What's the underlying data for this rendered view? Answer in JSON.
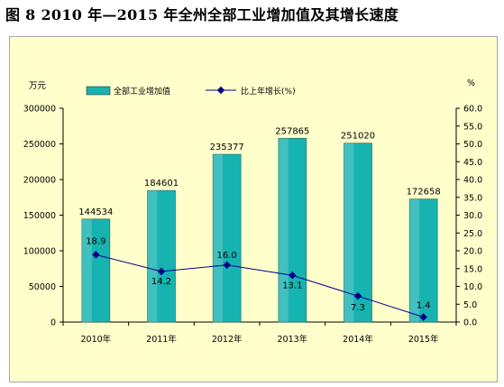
{
  "title": "图 8   2010 年—2015 年全州全部工业增加值及其增长速度",
  "chart_data": {
    "type": "bar+line",
    "categories": [
      "2010年",
      "2011年",
      "2012年",
      "2013年",
      "2014年",
      "2015年"
    ],
    "series": [
      {
        "name": "全部工业增加值",
        "type": "bar",
        "axis": "left",
        "values": [
          144534,
          184601,
          235377,
          257865,
          251020,
          172658
        ],
        "labels": [
          "144534",
          "184601",
          "235377",
          "257865",
          "251020",
          "172658"
        ],
        "color": "#17b3b0"
      },
      {
        "name": "比上年增长(%)",
        "type": "line",
        "axis": "right",
        "values": [
          18.9,
          14.2,
          16.0,
          13.1,
          7.3,
          1.4
        ],
        "labels": [
          "18.9",
          "14.2",
          "16.0",
          "13.1",
          "7.3",
          "1.4"
        ],
        "color": "#00008b"
      }
    ],
    "y_left": {
      "unit": "万元",
      "min": 0,
      "max": 300000,
      "step": 50000,
      "ticks": [
        "0",
        "50000",
        "100000",
        "150000",
        "200000",
        "250000",
        "300000"
      ]
    },
    "y_right": {
      "unit": "%",
      "min": 0,
      "max": 60,
      "step": 5,
      "ticks": [
        "0.0",
        "5.0",
        "10.0",
        "15.0",
        "20.0",
        "25.0",
        "30.0",
        "35.0",
        "40.0",
        "45.0",
        "50.0",
        "55.0",
        "60.0"
      ]
    },
    "grid": false,
    "legend_position": "top"
  }
}
